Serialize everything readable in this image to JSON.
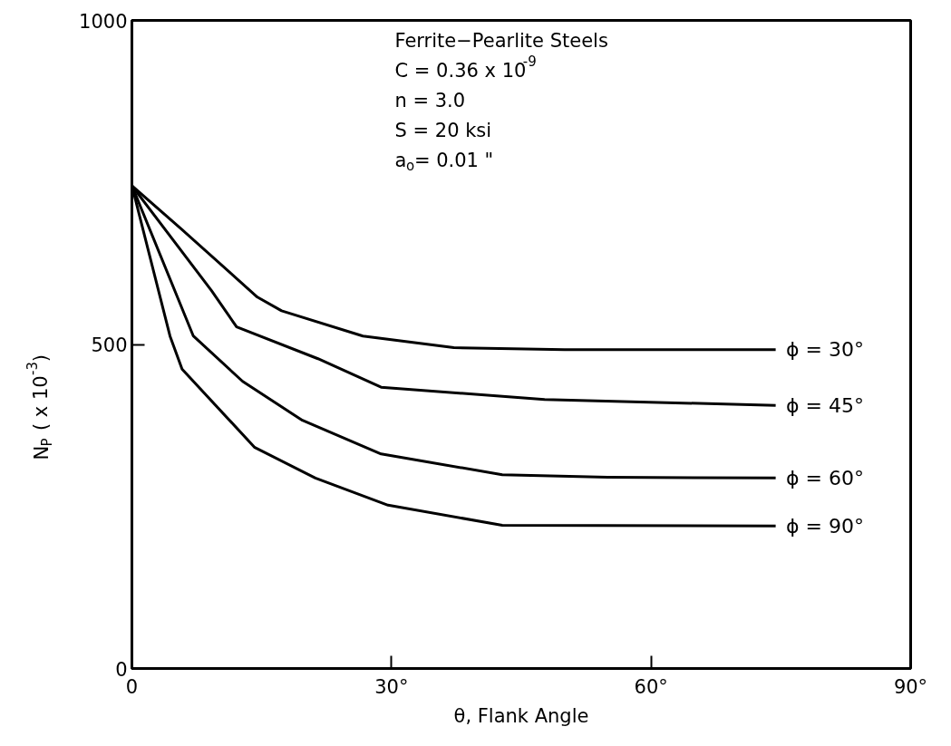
{
  "chart_data": {
    "type": "line",
    "xlabel": "θ, Flank Angle",
    "ylabel": "N$_{P}$ ( x 10$^{-3}$)",
    "xlim": [
      0,
      90
    ],
    "ylim": [
      0,
      1000
    ],
    "xticks": [
      0,
      {
        "value": 30,
        "label": "30°"
      },
      {
        "value": 60,
        "label": "60°"
      },
      {
        "value": 90,
        "label": "90°"
      }
    ],
    "yticks": [
      0,
      500,
      1000
    ],
    "grid": false,
    "marker": "none",
    "line_style": "solid",
    "annotations": [
      "Ferrite−Pearlite Steels",
      "C = 0.36 x 10$^{-9}$",
      "n = 3.0",
      "S = 20 ksi",
      "a$_{o}$= 0.01 \""
    ],
    "series": [
      {
        "name": "ϕ = 30°",
        "color": "#000000",
        "x": [
          0,
          5.8,
          14.5,
          17.3,
          26.7,
          37.2,
          50,
          74.4
        ],
        "values": [
          745,
          677,
          573,
          552,
          513,
          495,
          492,
          492
        ]
      },
      {
        "name": "ϕ = 45°",
        "color": "#000000",
        "x": [
          0,
          9.2,
          12.1,
          21.5,
          28.8,
          47.7,
          74.4
        ],
        "values": [
          745,
          583,
          527,
          478,
          434,
          415,
          406
        ]
      },
      {
        "name": "ϕ = 60°",
        "color": "#000000",
        "x": [
          0,
          7.1,
          12.8,
          19.7,
          28.8,
          42.8,
          55,
          74.4
        ],
        "values": [
          745,
          513,
          443,
          383,
          331,
          299,
          295,
          294
        ]
      },
      {
        "name": "ϕ = 90°",
        "color": "#000000",
        "x": [
          0,
          4.4,
          5.8,
          14.2,
          21.2,
          29.6,
          42.8,
          74.4
        ],
        "values": [
          745,
          513,
          462,
          341,
          294,
          252,
          221,
          220
        ]
      }
    ]
  }
}
